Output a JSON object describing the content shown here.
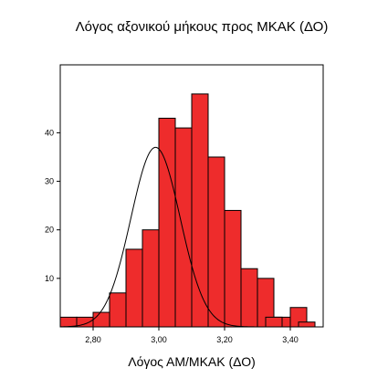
{
  "chart_data": {
    "type": "bar",
    "title": "Λόγος αξονικού μήκους προς ΜΚΑΚ (ΔΟ)",
    "xlabel": "Λόγος ΑΜ/ΜΚΑΚ (ΔΟ)",
    "ylabel": "",
    "bin_width": 0.05,
    "bin_starts": [
      2.7,
      2.75,
      2.8,
      2.85,
      2.9,
      2.95,
      3.0,
      3.05,
      3.1,
      3.15,
      3.2,
      3.25,
      3.3,
      3.35,
      3.4,
      3.45
    ],
    "values": [
      2,
      2,
      3,
      7,
      16,
      20,
      43,
      41,
      48,
      35,
      24,
      12,
      10,
      2,
      4,
      0
    ],
    "extra_bins": [
      {
        "start": 3.325,
        "end": 3.375,
        "value": 2
      },
      {
        "start": 3.425,
        "end": 3.475,
        "value": 1
      }
    ],
    "normal_curve": {
      "mean": 2.99,
      "sd": 0.075,
      "peak": 37
    },
    "xlim": [
      2.7,
      3.5
    ],
    "ylim": [
      0,
      54
    ],
    "x_ticks": [
      "2,80",
      "3,00",
      "3,20",
      "3,40"
    ],
    "x_tick_values": [
      2.8,
      3.0,
      3.2,
      3.4
    ],
    "y_ticks": [
      "10",
      "20",
      "30",
      "40"
    ],
    "y_tick_values": [
      10,
      20,
      30,
      40
    ],
    "grid": false,
    "bar_color": "#ee2c2c",
    "bar_edge_color": "#000000"
  }
}
